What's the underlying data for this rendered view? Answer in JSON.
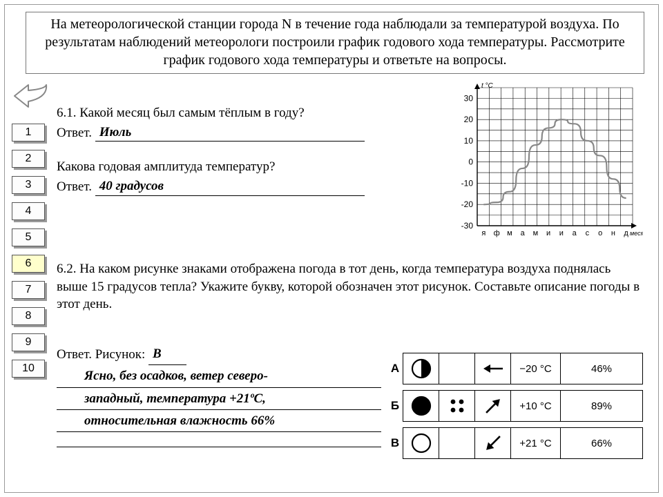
{
  "intro": "На метеорологической станции города N в течение года наблюдали за температурой воздуха. По результатам наблюдений метеорологи построили график годового хода температуры. Рассмотрите график годового хода температуры и ответьте на вопросы.",
  "nav": {
    "items": [
      "1",
      "2",
      "3",
      "4",
      "5",
      "6",
      "7",
      "8",
      "9",
      "10"
    ],
    "active": 6
  },
  "q61": {
    "num": "6.1.",
    "text": "Какой месяц был самым тёплым в году?",
    "ans_label": "Ответ.",
    "ans": "Июль"
  },
  "q_amp": {
    "text": "Какова годовая амплитуда температур?",
    "ans_label": "Ответ.",
    "ans": "40 градусов"
  },
  "q62": {
    "num": "6.2.",
    "text": "На каком рисунке знаками отображена погода в тот день, когда температура воздуха поднялась выше 15 градусов тепла? Укажите букву, которой обозначен этот рисунок. Составьте описание погоды в этот день.",
    "ans_label": "Ответ. Рисунок:",
    "ans_letter": "В",
    "desc1": "Ясно, без осадков, ветер северо-",
    "desc2": "западный, температура +21ºС,",
    "desc3": "относительная влажность 66%"
  },
  "chart": {
    "y_label": "t °C",
    "x_label": "месяц",
    "y_ticks": [
      30,
      20,
      10,
      0,
      -10,
      -20,
      -30
    ],
    "x_ticks": [
      "я",
      "ф",
      "м",
      "а",
      "м",
      "и",
      "и",
      "а",
      "с",
      "о",
      "н",
      "д"
    ],
    "data": [
      -20,
      -19,
      -14,
      -3,
      8,
      16,
      20,
      18,
      10,
      3,
      -8,
      -17
    ],
    "ylim": [
      -30,
      35
    ],
    "grid_color": "#000000",
    "line_color": "#888888",
    "background": "#ffffff"
  },
  "weather": {
    "rows": [
      {
        "label": "А",
        "sky": "half",
        "prec": "none",
        "wind": "left",
        "temp": "−20 °С",
        "hum": "46%"
      },
      {
        "label": "Б",
        "sky": "full",
        "prec": "dots",
        "wind": "ne",
        "temp": "+10 °С",
        "hum": "89%"
      },
      {
        "label": "В",
        "sky": "empty",
        "prec": "none",
        "wind": "se",
        "temp": "+21 °С",
        "hum": "66%"
      }
    ]
  }
}
